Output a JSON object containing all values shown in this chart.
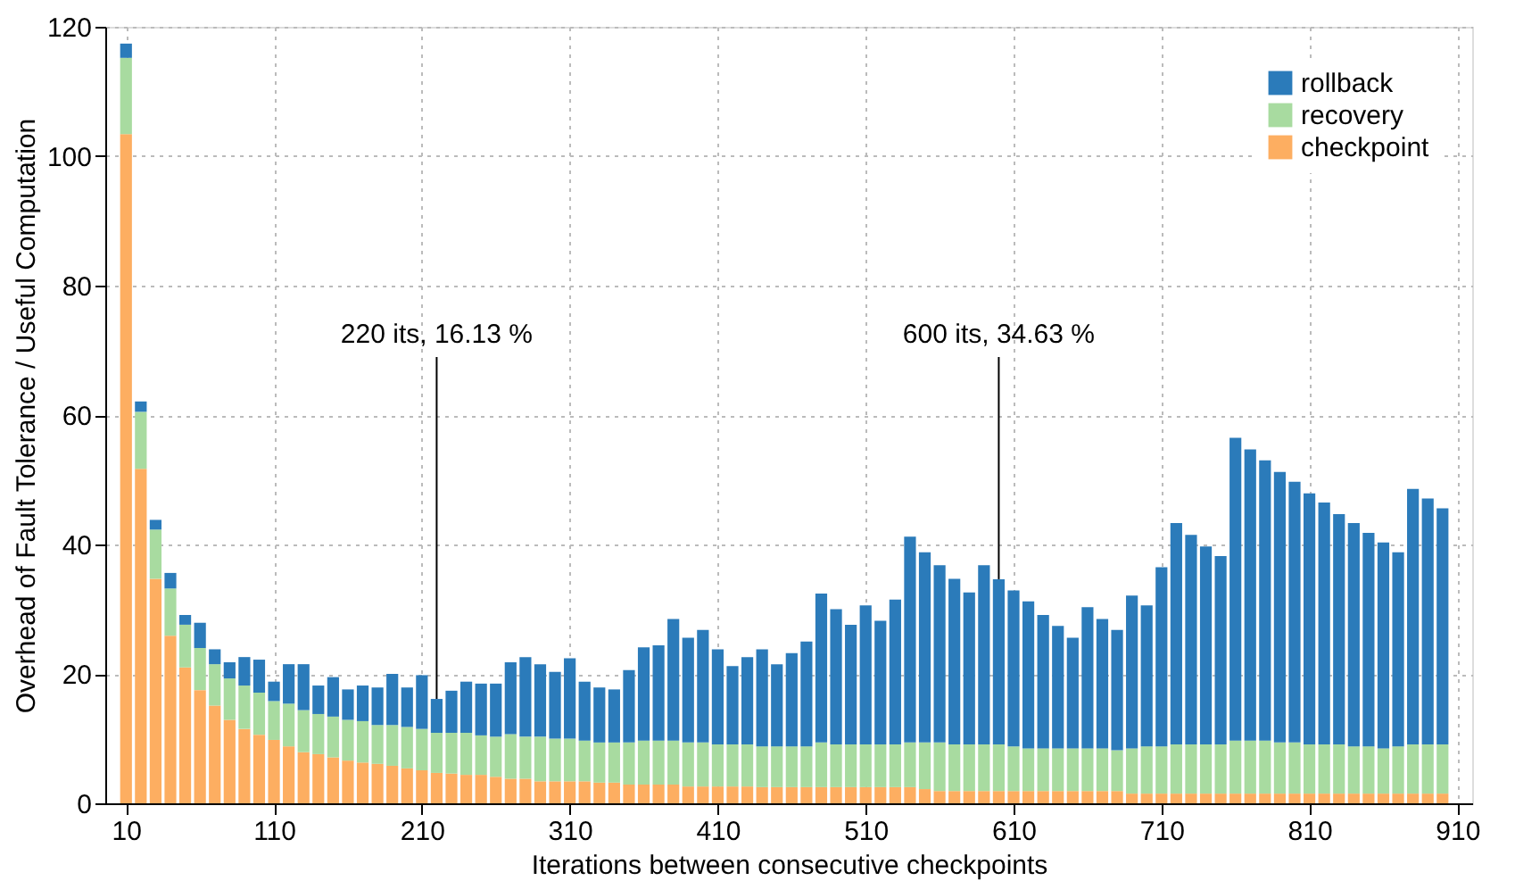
{
  "chart_data": {
    "type": "bar",
    "stacked": true,
    "xlabel": "Iterations between consecutive checkpoints",
    "ylabel": "Overhead of Fault Tolerance / Useful Computation",
    "x": [
      10,
      20,
      30,
      40,
      50,
      60,
      70,
      80,
      90,
      100,
      110,
      120,
      130,
      140,
      150,
      160,
      170,
      180,
      190,
      200,
      210,
      220,
      230,
      240,
      250,
      260,
      270,
      280,
      290,
      300,
      310,
      320,
      330,
      340,
      350,
      360,
      370,
      380,
      390,
      400,
      410,
      420,
      430,
      440,
      450,
      460,
      470,
      480,
      490,
      500,
      510,
      520,
      530,
      540,
      550,
      560,
      570,
      580,
      590,
      600,
      610,
      620,
      630,
      640,
      650,
      660,
      670,
      680,
      690,
      700,
      710,
      720,
      730,
      740,
      750,
      760,
      770,
      780,
      790,
      800,
      810,
      820,
      830,
      840,
      850,
      860,
      870,
      880,
      890,
      900
    ],
    "xlim": [
      2,
      914
    ],
    "xticks": [
      10,
      110,
      210,
      310,
      410,
      510,
      610,
      710,
      810,
      910
    ],
    "ylim": [
      0,
      120
    ],
    "yticks": [
      0,
      20,
      40,
      60,
      80,
      100,
      120
    ],
    "grid": true,
    "legend": "top right",
    "series": [
      {
        "name": "checkpoint",
        "color": "#fdae61",
        "values": [
          103.4,
          51.7,
          34.7,
          25.9,
          21.0,
          17.5,
          15.1,
          12.9,
          11.5,
          10.6,
          9.8,
          8.8,
          7.9,
          7.6,
          7.1,
          6.6,
          6.3,
          6.1,
          5.8,
          5.4,
          5.1,
          4.7,
          4.6,
          4.4,
          4.4,
          4.1,
          3.8,
          3.8,
          3.4,
          3.4,
          3.4,
          3.4,
          3.2,
          3.2,
          2.9,
          2.9,
          2.9,
          2.9,
          2.6,
          2.6,
          2.6,
          2.6,
          2.6,
          2.5,
          2.5,
          2.5,
          2.5,
          2.5,
          2.5,
          2.5,
          2.5,
          2.5,
          2.5,
          2.5,
          2.2,
          1.9,
          1.9,
          1.9,
          1.9,
          1.9,
          1.9,
          1.9,
          1.9,
          1.9,
          1.9,
          1.9,
          1.9,
          1.9,
          1.5,
          1.5,
          1.5,
          1.5,
          1.5,
          1.5,
          1.5,
          1.5,
          1.5,
          1.5,
          1.5,
          1.5,
          1.5,
          1.5,
          1.5,
          1.5,
          1.5,
          1.5,
          1.5,
          1.5,
          1.5,
          1.5
        ]
      },
      {
        "name": "recovery",
        "color": "#a8dba0",
        "values": [
          11.8,
          8.8,
          7.6,
          7.3,
          6.6,
          6.5,
          6.4,
          6.4,
          6.7,
          6.5,
          6.0,
          6.6,
          6.5,
          6.2,
          6.3,
          6.3,
          6.4,
          6.0,
          6.3,
          6.4,
          6.4,
          6.2,
          6.3,
          6.5,
          6.1,
          6.2,
          6.9,
          6.5,
          6.9,
          6.6,
          6.6,
          6.3,
          6.2,
          6.2,
          6.5,
          6.8,
          6.8,
          6.8,
          6.8,
          6.8,
          6.5,
          6.5,
          6.5,
          6.3,
          6.3,
          6.3,
          6.3,
          6.9,
          6.6,
          6.6,
          6.6,
          6.6,
          6.6,
          6.9,
          7.2,
          7.5,
          7.2,
          7.2,
          7.2,
          7.2,
          6.9,
          6.6,
          6.6,
          6.6,
          6.6,
          6.6,
          6.6,
          6.3,
          7.0,
          7.3,
          7.3,
          7.6,
          7.6,
          7.6,
          7.6,
          8.2,
          8.2,
          8.2,
          7.9,
          7.9,
          7.6,
          7.6,
          7.6,
          7.3,
          7.3,
          7.0,
          7.3,
          7.6,
          7.6,
          7.6
        ]
      },
      {
        "name": "rollback",
        "color": "#2b7bba",
        "values": [
          2.2,
          1.6,
          1.5,
          2.4,
          1.5,
          3.9,
          2.3,
          2.5,
          4.4,
          5.1,
          3.0,
          6.1,
          7.1,
          4.4,
          6.1,
          4.7,
          5.5,
          5.8,
          7.9,
          6.1,
          8.3,
          5.23,
          6.5,
          7.9,
          8.0,
          8.2,
          11.1,
          12.3,
          11.2,
          10.3,
          12.4,
          9.1,
          8.5,
          8.2,
          11.2,
          14.4,
          14.7,
          18.8,
          16.2,
          17.4,
          14.7,
          12.1,
          13.5,
          15.0,
          12.7,
          14.4,
          16.2,
          23.0,
          20.9,
          18.5,
          21.5,
          19.1,
          22.4,
          31.8,
          29.4,
          27.4,
          25.6,
          23.5,
          27.7,
          25.53,
          24.1,
          22.7,
          20.6,
          18.9,
          17.1,
          21.8,
          20.0,
          18.6,
          23.6,
          21.8,
          27.7,
          34.2,
          32.4,
          30.6,
          29.1,
          46.8,
          45.0,
          43.3,
          41.8,
          40.3,
          38.8,
          37.4,
          35.6,
          34.5,
          33.0,
          31.8,
          30.0,
          39.5,
          38.0,
          36.5
        ]
      }
    ],
    "annotations": [
      {
        "text": "220 its, 16.13 %",
        "x": 220,
        "y": 16.13
      },
      {
        "text": "600 its, 34.63 %",
        "x": 600,
        "y": 34.63
      }
    ]
  }
}
